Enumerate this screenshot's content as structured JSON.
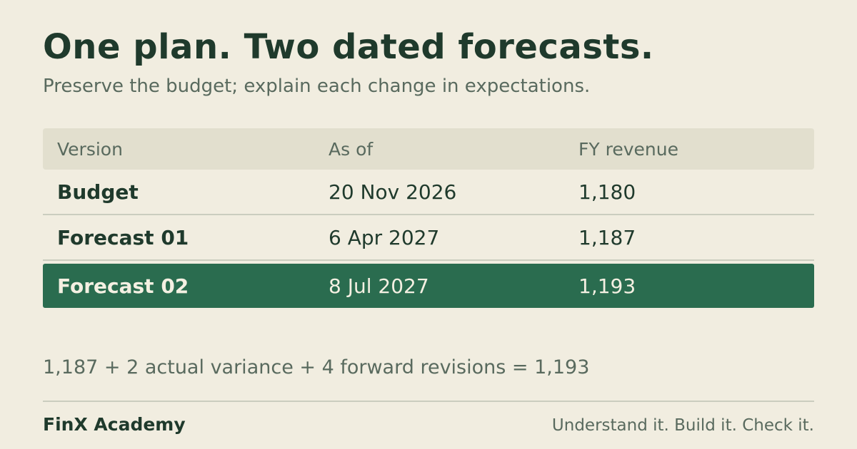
{
  "title": "One plan. Two dated forecasts.",
  "subtitle": "Preserve the budget; explain each change in expectations.",
  "table": {
    "headers": [
      "Version",
      "As of",
      "FY revenue"
    ],
    "rows": [
      {
        "version": "Budget",
        "as_of": "20 Nov 2026",
        "fy_revenue": "1,180"
      },
      {
        "version": "Forecast 01",
        "as_of": "6 Apr 2027",
        "fy_revenue": "1,187"
      },
      {
        "version": "Forecast 02",
        "as_of": "8 Jul 2027",
        "fy_revenue": "1,193",
        "highlighted": true
      }
    ]
  },
  "summary": "1,187 + 2 actual variance + 4 forward revisions = 1,193",
  "footer": {
    "brand": "FinX Academy",
    "tagline": "Understand it. Build it. Check it."
  },
  "colors": {
    "background": "#f1ede0",
    "text": "#1f3a2c",
    "muted": "#596a5e",
    "header_row": "#e2dfce",
    "highlight_row": "#2a6c4f",
    "highlight_text": "#f4f0e2"
  }
}
